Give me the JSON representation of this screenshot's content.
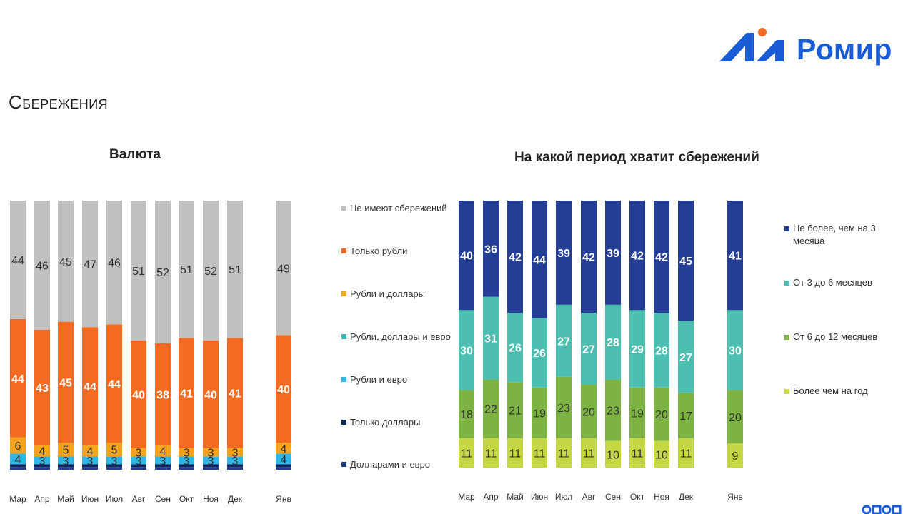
{
  "brand": {
    "name": "Ромир",
    "logo_colors": [
      "#1a5cd6",
      "#f26b21"
    ]
  },
  "page": {
    "title": "Сбережения"
  },
  "chart_data": [
    {
      "type": "bar",
      "stacked": true,
      "title": "Валюта",
      "categories": [
        "Мар",
        "Апр",
        "Май",
        "Июн",
        "Июл",
        "Авг",
        "Сен",
        "Окт",
        "Ноя",
        "Дек",
        "Янв"
      ],
      "series": [
        {
          "name": "Долларами и евро",
          "color": "#1f3d8a",
          "values": [
            1,
            1,
            1,
            1,
            1,
            1,
            1,
            1,
            1,
            1,
            1
          ]
        },
        {
          "name": "Только доллары",
          "color": "#0d2a5c",
          "values": [
            1,
            1,
            1,
            1,
            1,
            1,
            1,
            1,
            1,
            1,
            1
          ]
        },
        {
          "name": "Рубли и евро",
          "color": "#2fb5e6",
          "values": [
            4,
            3,
            3,
            3,
            3,
            3,
            3,
            3,
            3,
            3,
            4
          ]
        },
        {
          "name": "Рубли, доллары и евро",
          "color": "#3dbab5",
          "values": [
            0,
            0,
            0,
            0,
            0,
            0,
            0,
            0,
            0,
            0,
            0
          ]
        },
        {
          "name": "Рубли и доллары",
          "color": "#f7a21b",
          "values": [
            6,
            4,
            5,
            4,
            5,
            3,
            4,
            3,
            3,
            3,
            4
          ]
        },
        {
          "name": "Только рубли",
          "color": "#f26b21",
          "values": [
            44,
            43,
            45,
            44,
            44,
            40,
            38,
            41,
            40,
            41,
            40
          ]
        },
        {
          "name": "Не имеют сбережений",
          "color": "#c0c0c0",
          "values": [
            44,
            46,
            45,
            47,
            46,
            51,
            52,
            51,
            52,
            51,
            49
          ]
        }
      ],
      "ylim": [
        0,
        100
      ],
      "legend": "left-of-second-chart"
    },
    {
      "type": "bar",
      "stacked": true,
      "title": "На какой период хватит сбережений",
      "categories": [
        "Мар",
        "Апр",
        "Май",
        "Июн",
        "Июл",
        "Авг",
        "Сен",
        "Окт",
        "Ноя",
        "Дек",
        "Янв"
      ],
      "series": [
        {
          "name": "Более чем на год",
          "color": "#c5d843",
          "values": [
            11,
            11,
            11,
            11,
            11,
            11,
            10,
            11,
            10,
            11,
            9
          ]
        },
        {
          "name": "От 6 до 12 месяцев",
          "color": "#7cb342",
          "values": [
            18,
            22,
            21,
            19,
            23,
            20,
            23,
            19,
            20,
            17,
            20
          ]
        },
        {
          "name": "От 3 до 6 месяцев",
          "color": "#4dbfb0",
          "values": [
            30,
            31,
            26,
            26,
            27,
            27,
            28,
            29,
            28,
            27,
            30
          ]
        },
        {
          "name": "Не более, чем на 3 месяца",
          "color": "#243f95",
          "values": [
            40,
            36,
            42,
            44,
            39,
            42,
            39,
            42,
            42,
            45,
            41
          ]
        }
      ],
      "ylim": [
        0,
        100
      ],
      "legend": "right"
    }
  ]
}
